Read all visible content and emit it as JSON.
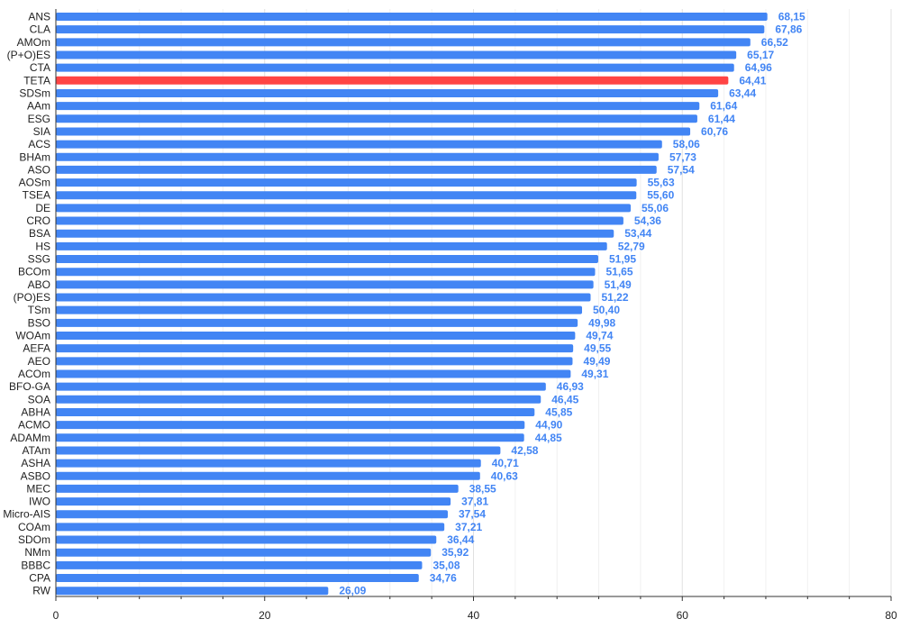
{
  "colors": {
    "bar": "#4285f4",
    "highlight": "#ff4444",
    "value_label": "#4285f4",
    "grid": "#e0e0e0",
    "axis": "#333333"
  },
  "chart_data": {
    "type": "bar",
    "orientation": "horizontal",
    "title": "",
    "xlabel": "",
    "ylabel": "",
    "xlim": [
      0,
      80
    ],
    "x_ticks": [
      0,
      20,
      40,
      60,
      80
    ],
    "grid": true,
    "highlight_category": "TETA",
    "categories": [
      "ANS",
      "CLA",
      "AMOm",
      "(P+O)ES",
      "CTA",
      "TETA",
      "SDSm",
      "AAm",
      "ESG",
      "SIA",
      "ACS",
      "BHAm",
      "ASO",
      "AOSm",
      "TSEA",
      "DE",
      "CRO",
      "BSA",
      "HS",
      "SSG",
      "BCOm",
      "ABO",
      "(PO)ES",
      "TSm",
      "BSO",
      "WOAm",
      "AEFA",
      "AEO",
      "ACOm",
      "BFO-GA",
      "SOA",
      "ABHA",
      "ACMO",
      "ADAMm",
      "ATAm",
      "ASHA",
      "ASBO",
      "MEC",
      "IWO",
      "Micro-AIS",
      "COAm",
      "SDOm",
      "NMm",
      "BBBC",
      "CPA",
      "RW"
    ],
    "values": [
      68.15,
      67.86,
      66.52,
      65.17,
      64.96,
      64.41,
      63.44,
      61.64,
      61.44,
      60.76,
      58.06,
      57.73,
      57.54,
      55.63,
      55.6,
      55.06,
      54.36,
      53.44,
      52.79,
      51.95,
      51.65,
      51.49,
      51.22,
      50.4,
      49.98,
      49.74,
      49.55,
      49.49,
      49.31,
      46.93,
      46.45,
      45.85,
      44.9,
      44.85,
      42.58,
      40.71,
      40.63,
      38.55,
      37.81,
      37.54,
      37.21,
      36.44,
      35.92,
      35.08,
      34.76,
      26.09
    ],
    "value_labels": [
      "68,15",
      "67,86",
      "66,52",
      "65,17",
      "64,96",
      "64,41",
      "63,44",
      "61,64",
      "61,44",
      "60,76",
      "58,06",
      "57,73",
      "57,54",
      "55,63",
      "55,60",
      "55,06",
      "54,36",
      "53,44",
      "52,79",
      "51,95",
      "51,65",
      "51,49",
      "51,22",
      "50,40",
      "49,98",
      "49,74",
      "49,55",
      "49,49",
      "49,31",
      "46,93",
      "46,45",
      "45,85",
      "44,90",
      "44,85",
      "42,58",
      "40,71",
      "40,63",
      "38,55",
      "37,81",
      "37,54",
      "37,21",
      "36,44",
      "35,92",
      "35,08",
      "34,76",
      "26,09"
    ]
  }
}
